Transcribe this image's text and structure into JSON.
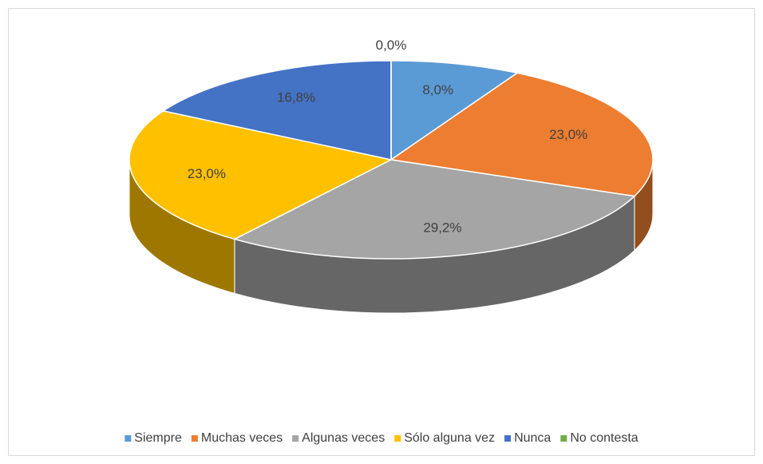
{
  "chart_data": {
    "type": "pie3d",
    "categories": [
      "Siempre",
      "Muchas veces",
      "Algunas veces",
      "Sólo alguna vez",
      "Nunca",
      "No contesta"
    ],
    "values": [
      8.0,
      23.0,
      29.2,
      23.0,
      16.8,
      0.0
    ],
    "value_labels": [
      "8,0%",
      "23,0%",
      "29,2%",
      "23,0%",
      "16,8%",
      "0,0%"
    ],
    "colors": [
      "#5b9bd5",
      "#ed7d31",
      "#a5a5a5",
      "#ffc000",
      "#4472c4",
      "#70ad47"
    ],
    "legend": "bottom"
  }
}
